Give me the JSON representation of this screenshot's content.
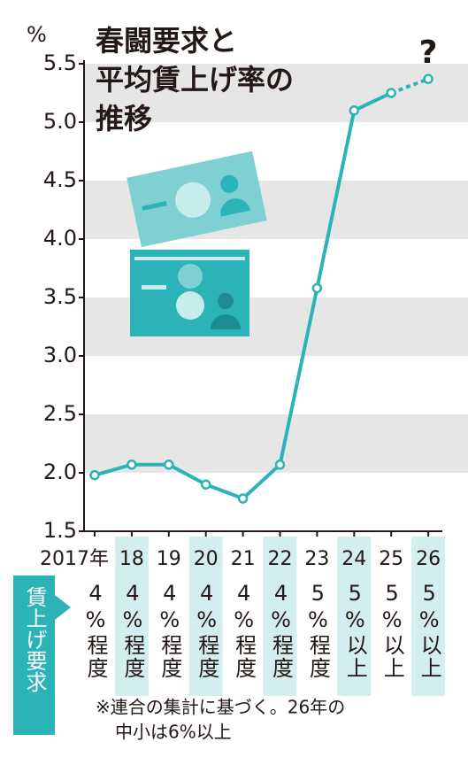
{
  "chart_data": {
    "type": "line",
    "title_lines": [
      "春闘要求と",
      "平均賃上げ率の",
      "推移"
    ],
    "y_unit": "%",
    "categories": [
      "2017年",
      "18",
      "19",
      "20",
      "21",
      "22",
      "23",
      "24",
      "25",
      "26"
    ],
    "values": [
      1.98,
      2.07,
      2.07,
      1.9,
      1.78,
      2.07,
      3.58,
      5.1,
      5.25,
      5.37
    ],
    "color": "#2bb3b8",
    "dashed_last_segment": true,
    "annotation": "?",
    "ylim": [
      1.5,
      5.5
    ],
    "yticks": [
      1.5,
      {
        "value": 2,
        "label": "2.0"
      },
      2.5,
      {
        "value": 3,
        "label": "3.0"
      },
      3.5,
      {
        "value": 4,
        "label": "4.0"
      },
      4.5,
      {
        "value": 5,
        "label": "5.0"
      },
      5.5
    ],
    "grid": true,
    "requirements_label": "賃上げ要求",
    "requirements": [
      "4%程度",
      "4%程度",
      "4%程度",
      "4%程度",
      "4%程度",
      "4%程度",
      "5%程度",
      "5%以上",
      "5%以上",
      "5%以上"
    ],
    "note": [
      "※連合の集計に基づく。26年の",
      "中小は6%以上"
    ]
  }
}
